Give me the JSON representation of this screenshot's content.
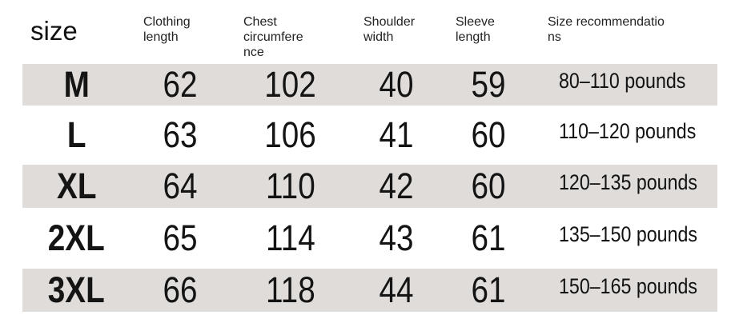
{
  "chart_data": {
    "type": "table",
    "title": "size",
    "columns": [
      "size",
      "Clothing length",
      "Chest circumference",
      "Shoulder width",
      "Sleeve length",
      "Size recommendations"
    ],
    "rows": [
      [
        "M",
        62,
        102,
        40,
        59,
        "80–110 pounds"
      ],
      [
        "L",
        63,
        106,
        41,
        60,
        "110–120 pounds"
      ],
      [
        "XL",
        64,
        110,
        42,
        60,
        "120–135 pounds"
      ],
      [
        "2XL",
        65,
        114,
        43,
        61,
        "135–150 pounds"
      ],
      [
        "3XL",
        66,
        118,
        44,
        61,
        "150–165 pounds"
      ]
    ],
    "units_note": "",
    "layout": {
      "stripe_color": "#dfdcd9",
      "striped_rows": [
        "M",
        "XL",
        "3XL"
      ],
      "background": "#ffffff"
    }
  }
}
